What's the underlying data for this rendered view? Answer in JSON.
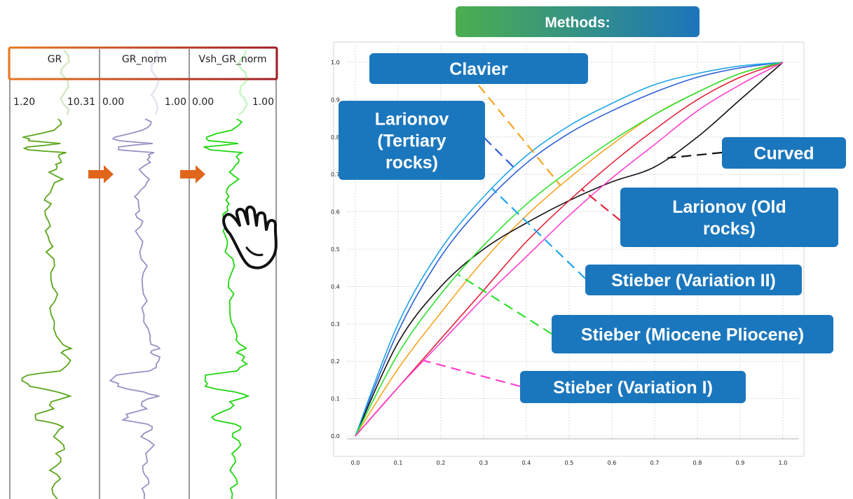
{
  "methods_banner": "Methods:",
  "log_panel": {
    "header_box_colors": [
      "#e87722",
      "#a11c24"
    ],
    "tracks": [
      {
        "name": "GR",
        "min": "1.20",
        "max": "10.31",
        "color": "#5aa51a"
      },
      {
        "name": "GR_norm",
        "min": "0.00",
        "max": "1.00",
        "color": "#9b8fc4"
      },
      {
        "name": "Vsh_GR_norm",
        "min": "0.00",
        "max": "1.00",
        "color": "#1ed60f"
      }
    ],
    "arrow_color": "#e0661c",
    "pointer_icon": "hand-pointer-icon"
  },
  "chart_data": {
    "type": "line",
    "xlim": [
      0,
      1
    ],
    "ylim": [
      0,
      1
    ],
    "x_ticks": [
      "0.0",
      "0.1",
      "0.2",
      "0.3",
      "0.4",
      "0.5",
      "0.6",
      "0.7",
      "0.8",
      "0.9",
      "1.0"
    ],
    "y_ticks": [
      "0.0",
      "0.1",
      "0.2",
      "0.3",
      "0.4",
      "0.5",
      "0.6",
      "0.7",
      "0.8",
      "0.9",
      "1.0"
    ],
    "grid": true,
    "series": [
      {
        "name": "Clavier",
        "color": "#f5a623",
        "x": [
          0,
          0.1,
          0.2,
          0.3,
          0.4,
          0.5,
          0.6,
          0.7,
          0.8,
          0.9,
          1.0
        ],
        "y": [
          0,
          0.18,
          0.33,
          0.47,
          0.59,
          0.69,
          0.78,
          0.86,
          0.92,
          0.97,
          1.0
        ]
      },
      {
        "name": "Larionov (Tertiary rocks)",
        "color": "#2d5fd6",
        "x": [
          0,
          0.1,
          0.2,
          0.3,
          0.4,
          0.5,
          0.6,
          0.7,
          0.8,
          0.9,
          1.0
        ],
        "y": [
          0,
          0.28,
          0.48,
          0.62,
          0.73,
          0.81,
          0.87,
          0.92,
          0.96,
          0.985,
          1.0
        ]
      },
      {
        "name": "Curved",
        "color": "#111111",
        "x": [
          0,
          0.1,
          0.2,
          0.3,
          0.4,
          0.5,
          0.6,
          0.7,
          0.8,
          0.9,
          1.0
        ],
        "y": [
          0,
          0.25,
          0.4,
          0.5,
          0.57,
          0.63,
          0.68,
          0.72,
          0.8,
          0.9,
          1.0
        ]
      },
      {
        "name": "Larionov (Old rocks)",
        "color": "#e3223a",
        "x": [
          0,
          0.1,
          0.2,
          0.3,
          0.4,
          0.5,
          0.6,
          0.7,
          0.8,
          0.9,
          1.0
        ],
        "y": [
          0,
          0.13,
          0.26,
          0.39,
          0.52,
          0.63,
          0.73,
          0.82,
          0.9,
          0.96,
          1.0
        ]
      },
      {
        "name": "Stieber (Variation II)",
        "color": "#20a4e8",
        "x": [
          0,
          0.1,
          0.2,
          0.3,
          0.4,
          0.5,
          0.6,
          0.7,
          0.8,
          0.9,
          1.0
        ],
        "y": [
          0,
          0.3,
          0.5,
          0.64,
          0.75,
          0.83,
          0.89,
          0.94,
          0.97,
          0.99,
          1.0
        ]
      },
      {
        "name": "Stieber (Miocene Pliocene)",
        "color": "#2ee02e",
        "x": [
          0,
          0.1,
          0.2,
          0.3,
          0.4,
          0.5,
          0.6,
          0.7,
          0.8,
          0.9,
          1.0
        ],
        "y": [
          0,
          0.22,
          0.38,
          0.51,
          0.62,
          0.71,
          0.79,
          0.86,
          0.92,
          0.97,
          1.0
        ]
      },
      {
        "name": "Stieber (Variation I)",
        "color": "#ff3fd0",
        "x": [
          0,
          0.1,
          0.2,
          0.3,
          0.4,
          0.5,
          0.6,
          0.7,
          0.8,
          0.9,
          1.0
        ],
        "y": [
          0,
          0.13,
          0.25,
          0.37,
          0.48,
          0.59,
          0.69,
          0.78,
          0.87,
          0.94,
          1.0
        ]
      }
    ],
    "callouts": [
      {
        "label": [
          "Clavier"
        ],
        "series": "Clavier"
      },
      {
        "label": [
          "Larionov",
          "(Tertiary",
          "rocks)"
        ],
        "series": "Larionov (Tertiary rocks)"
      },
      {
        "label": [
          "Curved"
        ],
        "series": "Curved"
      },
      {
        "label": [
          "Larionov (Old",
          "rocks)"
        ],
        "series": "Larionov (Old rocks)"
      },
      {
        "label": [
          "Stieber (Variation II)"
        ],
        "series": "Stieber (Variation II)"
      },
      {
        "label": [
          "Stieber (Miocene Pliocene)"
        ],
        "series": "Stieber (Miocene Pliocene)"
      },
      {
        "label": [
          "Stieber (Variation I)"
        ],
        "series": "Stieber (Variation I)"
      }
    ],
    "callout_box_color": "#1b77bd",
    "banner_colors": [
      "#4cae4f",
      "#1c75bb"
    ]
  }
}
